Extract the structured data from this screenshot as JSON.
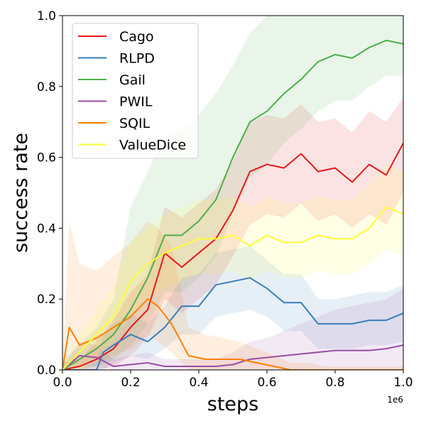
{
  "chart_data": {
    "type": "line",
    "xlabel": "steps",
    "ylabel": "success rate",
    "x_scale_label": "1e6",
    "xlim": [
      0,
      1.0
    ],
    "ylim": [
      0,
      1.0
    ],
    "x_unit_multiplier": 1000000,
    "xticks": [
      0.0,
      0.2,
      0.4,
      0.6,
      0.8,
      1.0
    ],
    "xtick_labels": [
      "0.0",
      "0.2",
      "0.4",
      "0.6",
      "0.8",
      "1.0"
    ],
    "yticks": [
      0.0,
      0.2,
      0.4,
      0.6,
      0.8,
      1.0
    ],
    "ytick_labels": [
      "0.0",
      "0.2",
      "0.4",
      "0.6",
      "0.8",
      "1.0"
    ],
    "grid": false,
    "legend_position": "top-left",
    "series": [
      {
        "name": "Cago",
        "color": "#e41a1c",
        "x": [
          0,
          0.05,
          0.1,
          0.15,
          0.2,
          0.25,
          0.3,
          0.35,
          0.4,
          0.45,
          0.5,
          0.55,
          0.6,
          0.65,
          0.7,
          0.75,
          0.8,
          0.85,
          0.9,
          0.95,
          1.0
        ],
        "values": [
          0.0,
          0.01,
          0.03,
          0.06,
          0.12,
          0.17,
          0.33,
          0.29,
          0.33,
          0.37,
          0.45,
          0.56,
          0.58,
          0.57,
          0.61,
          0.56,
          0.57,
          0.53,
          0.58,
          0.55,
          0.64
        ],
        "lower": [
          0.0,
          0.0,
          0.0,
          0.01,
          0.04,
          0.09,
          0.2,
          0.16,
          0.2,
          0.24,
          0.32,
          0.41,
          0.44,
          0.43,
          0.47,
          0.42,
          0.44,
          0.4,
          0.44,
          0.41,
          0.5
        ],
        "upper": [
          0.02,
          0.03,
          0.08,
          0.14,
          0.22,
          0.27,
          0.46,
          0.43,
          0.47,
          0.51,
          0.59,
          0.7,
          0.72,
          0.71,
          0.75,
          0.7,
          0.71,
          0.67,
          0.73,
          0.7,
          0.77
        ]
      },
      {
        "name": "RLPD",
        "color": "#377eb8",
        "x": [
          0,
          0.05,
          0.1,
          0.12,
          0.15,
          0.2,
          0.25,
          0.3,
          0.35,
          0.4,
          0.45,
          0.5,
          0.55,
          0.6,
          0.65,
          0.7,
          0.75,
          0.8,
          0.85,
          0.9,
          0.95,
          1.0
        ],
        "values": [
          0.0,
          0.0,
          0.0,
          0.05,
          0.07,
          0.1,
          0.08,
          0.12,
          0.18,
          0.18,
          0.24,
          0.25,
          0.26,
          0.23,
          0.19,
          0.19,
          0.13,
          0.13,
          0.13,
          0.14,
          0.14,
          0.16
        ],
        "lower": [
          0.0,
          0.0,
          0.0,
          0.0,
          0.02,
          0.04,
          0.03,
          0.06,
          0.1,
          0.1,
          0.15,
          0.16,
          0.17,
          0.15,
          0.11,
          0.11,
          0.06,
          0.06,
          0.06,
          0.07,
          0.07,
          0.08
        ],
        "upper": [
          0.0,
          0.0,
          0.02,
          0.1,
          0.13,
          0.16,
          0.13,
          0.18,
          0.26,
          0.27,
          0.33,
          0.34,
          0.35,
          0.31,
          0.27,
          0.27,
          0.2,
          0.2,
          0.21,
          0.22,
          0.22,
          0.24
        ]
      },
      {
        "name": "Gail",
        "color": "#4daf4a",
        "x": [
          0,
          0.05,
          0.1,
          0.15,
          0.2,
          0.25,
          0.3,
          0.35,
          0.4,
          0.45,
          0.5,
          0.55,
          0.6,
          0.65,
          0.7,
          0.75,
          0.8,
          0.85,
          0.9,
          0.95,
          1.0
        ],
        "values": [
          0.0,
          0.03,
          0.06,
          0.1,
          0.17,
          0.26,
          0.38,
          0.38,
          0.42,
          0.48,
          0.6,
          0.7,
          0.73,
          0.78,
          0.82,
          0.87,
          0.89,
          0.88,
          0.91,
          0.93,
          0.92
        ],
        "lower": [
          0.0,
          0.0,
          0.01,
          0.03,
          0.07,
          0.13,
          0.22,
          0.22,
          0.26,
          0.32,
          0.44,
          0.54,
          0.58,
          0.64,
          0.68,
          0.73,
          0.76,
          0.76,
          0.8,
          0.83,
          0.83
        ],
        "upper": [
          0.02,
          0.07,
          0.12,
          0.2,
          0.46,
          0.56,
          0.66,
          0.68,
          0.72,
          0.78,
          0.86,
          0.95,
          1.0,
          1.0,
          1.0,
          1.0,
          1.0,
          1.0,
          1.0,
          1.0,
          1.0
        ]
      },
      {
        "name": "PWIL",
        "color": "#984ea3",
        "x": [
          0,
          0.05,
          0.1,
          0.15,
          0.2,
          0.25,
          0.3,
          0.35,
          0.4,
          0.45,
          0.5,
          0.55,
          0.6,
          0.65,
          0.7,
          0.75,
          0.8,
          0.85,
          0.9,
          0.95,
          1.0
        ],
        "values": [
          0.0,
          0.04,
          0.035,
          0.01,
          0.015,
          0.02,
          0.01,
          0.01,
          0.01,
          0.01,
          0.015,
          0.03,
          0.035,
          0.04,
          0.045,
          0.05,
          0.055,
          0.055,
          0.055,
          0.06,
          0.07
        ],
        "lower": [
          0.0,
          0.01,
          0.01,
          0.0,
          0.0,
          0.0,
          0.0,
          0.0,
          0.0,
          0.0,
          0.0,
          0.0,
          0.0,
          0.0,
          0.0,
          0.0,
          0.0,
          0.0,
          0.0,
          0.0,
          0.0
        ],
        "upper": [
          0.01,
          0.08,
          0.07,
          0.03,
          0.04,
          0.05,
          0.03,
          0.03,
          0.03,
          0.03,
          0.05,
          0.08,
          0.09,
          0.11,
          0.13,
          0.15,
          0.17,
          0.18,
          0.19,
          0.2,
          0.23
        ]
      },
      {
        "name": "SQIL",
        "color": "#ff7f00",
        "x": [
          0,
          0.02,
          0.05,
          0.1,
          0.15,
          0.2,
          0.25,
          0.28,
          0.32,
          0.37,
          0.42,
          0.47,
          0.52,
          0.57,
          0.62,
          0.67,
          0.72,
          0.77,
          0.82,
          0.87,
          0.92,
          0.97,
          1.0
        ],
        "values": [
          0.0,
          0.12,
          0.07,
          0.09,
          0.12,
          0.15,
          0.2,
          0.18,
          0.13,
          0.04,
          0.03,
          0.03,
          0.03,
          0.02,
          0.01,
          0.0,
          0.0,
          0.0,
          0.0,
          0.0,
          0.0,
          0.0,
          0.0
        ],
        "lower": [
          0.0,
          0.02,
          0.0,
          0.02,
          0.04,
          0.06,
          0.1,
          0.08,
          0.05,
          0.0,
          0.0,
          0.0,
          0.0,
          0.0,
          0.0,
          0.0,
          0.0,
          0.0,
          0.0,
          0.0,
          0.0,
          0.0,
          0.0
        ],
        "upper": [
          0.02,
          0.42,
          0.3,
          0.28,
          0.32,
          0.36,
          0.42,
          0.4,
          0.35,
          0.12,
          0.1,
          0.09,
          0.08,
          0.06,
          0.04,
          0.02,
          0.02,
          0.01,
          0.01,
          0.01,
          0.01,
          0.01,
          0.01
        ]
      },
      {
        "name": "ValueDice",
        "color": "#ffff33",
        "x": [
          0,
          0.05,
          0.1,
          0.15,
          0.2,
          0.25,
          0.3,
          0.35,
          0.4,
          0.45,
          0.5,
          0.55,
          0.6,
          0.65,
          0.7,
          0.75,
          0.8,
          0.85,
          0.9,
          0.95,
          1.0
        ],
        "values": [
          0.0,
          0.05,
          0.1,
          0.15,
          0.25,
          0.3,
          0.33,
          0.35,
          0.37,
          0.37,
          0.38,
          0.35,
          0.38,
          0.36,
          0.36,
          0.38,
          0.37,
          0.37,
          0.4,
          0.46,
          0.44
        ],
        "lower": [
          0.0,
          0.0,
          0.04,
          0.08,
          0.15,
          0.2,
          0.23,
          0.25,
          0.27,
          0.27,
          0.28,
          0.25,
          0.28,
          0.26,
          0.26,
          0.28,
          0.27,
          0.27,
          0.3,
          0.34,
          0.32
        ],
        "upper": [
          0.02,
          0.1,
          0.17,
          0.24,
          0.36,
          0.4,
          0.44,
          0.46,
          0.48,
          0.48,
          0.49,
          0.46,
          0.49,
          0.47,
          0.47,
          0.49,
          0.48,
          0.48,
          0.52,
          0.58,
          0.56
        ]
      }
    ]
  }
}
